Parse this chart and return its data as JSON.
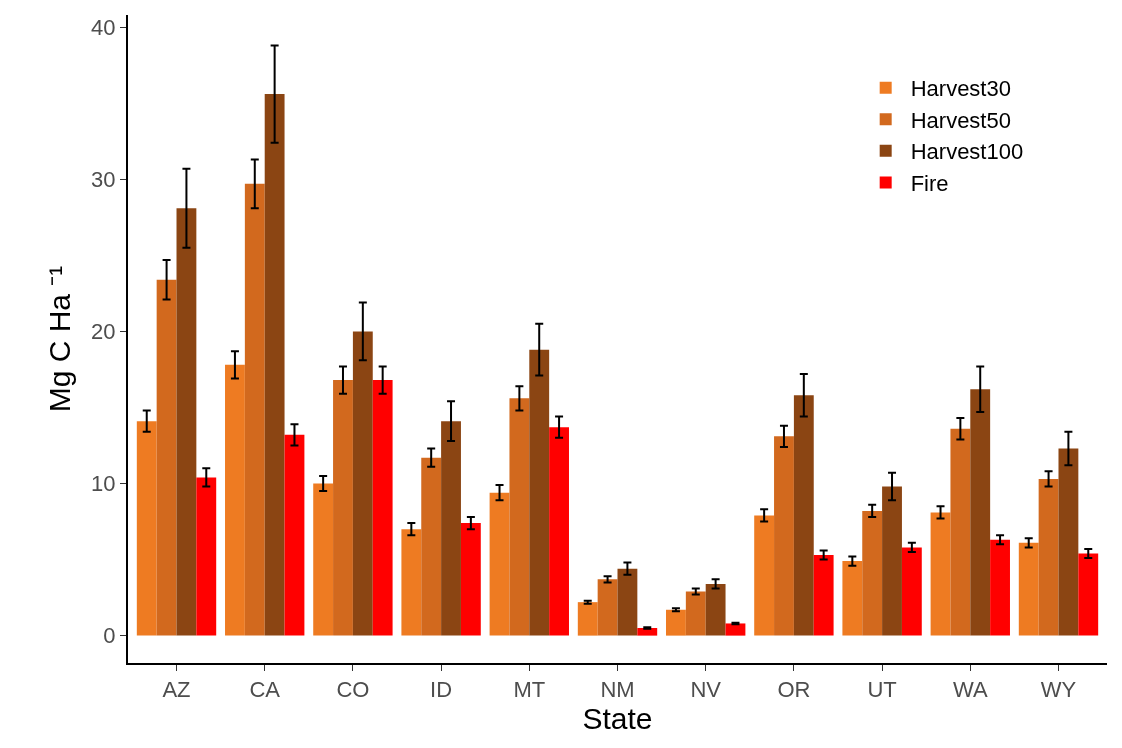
{
  "chart_data": {
    "type": "bar",
    "xlabel": "State",
    "ylabel": "Mg C Ha ⁻¹",
    "categories": [
      "AZ",
      "CA",
      "CO",
      "ID",
      "MT",
      "NM",
      "NV",
      "OR",
      "UT",
      "WA",
      "WY"
    ],
    "series": [
      {
        "name": "Harvest30",
        "color": "#ee7b22",
        "values": [
          14.1,
          17.8,
          10.0,
          7.0,
          9.4,
          2.2,
          1.7,
          7.9,
          4.9,
          8.1,
          6.1
        ],
        "errors": [
          0.7,
          0.9,
          0.5,
          0.4,
          0.5,
          0.1,
          0.1,
          0.4,
          0.3,
          0.4,
          0.3
        ]
      },
      {
        "name": "Harvest50",
        "color": "#d2691e",
        "values": [
          23.4,
          29.7,
          16.8,
          11.7,
          15.6,
          3.7,
          2.9,
          13.1,
          8.2,
          13.6,
          10.3
        ],
        "errors": [
          1.3,
          1.6,
          0.9,
          0.6,
          0.8,
          0.2,
          0.2,
          0.7,
          0.4,
          0.7,
          0.5
        ]
      },
      {
        "name": "Harvest100",
        "color": "#8b4513",
        "values": [
          28.1,
          35.6,
          20.0,
          14.1,
          18.8,
          4.4,
          3.4,
          15.8,
          9.8,
          16.2,
          12.3
        ],
        "errors": [
          2.6,
          3.2,
          1.9,
          1.3,
          1.7,
          0.4,
          0.3,
          1.4,
          0.9,
          1.5,
          1.1
        ]
      },
      {
        "name": "Fire",
        "color": "#ff0000",
        "values": [
          10.4,
          13.2,
          16.8,
          7.4,
          13.7,
          0.5,
          0.8,
          5.3,
          5.8,
          6.3,
          5.4
        ],
        "errors": [
          0.6,
          0.7,
          0.9,
          0.4,
          0.7,
          0.05,
          0.05,
          0.3,
          0.3,
          0.3,
          0.3
        ]
      }
    ],
    "ylim": [
      -1.8,
      40.8
    ],
    "yticks": [
      0,
      10,
      20,
      30,
      40
    ],
    "legend": "top right"
  }
}
